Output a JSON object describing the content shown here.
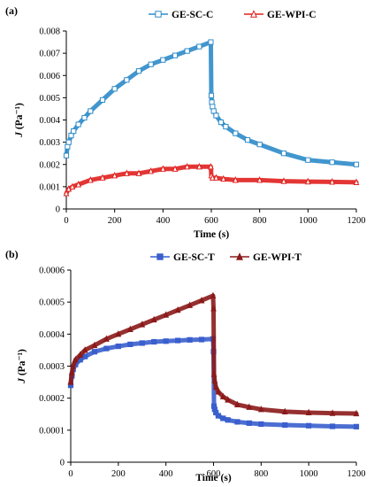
{
  "chart_data": [
    {
      "type": "line",
      "panel_label": "(a)",
      "xlabel": "Time (s)",
      "ylabel_italic": "J",
      "ylabel_rest": " (Pa⁻¹)",
      "xlim": [
        0,
        1200
      ],
      "ylim": [
        0,
        0.008
      ],
      "xticks": [
        "0",
        "200",
        "400",
        "600",
        "800",
        "1000",
        "1200"
      ],
      "yticks": [
        "0",
        "0.001",
        "0.002",
        "0.003",
        "0.004",
        "0.005",
        "0.006",
        "0.007",
        "0.008"
      ],
      "legend_position": "top",
      "series": [
        {
          "name": "GE-SC-C",
          "color": "#2e8bc9",
          "marker": "square-open",
          "x": [
            0,
            5,
            10,
            20,
            30,
            50,
            75,
            100,
            150,
            200,
            250,
            300,
            350,
            400,
            450,
            500,
            550,
            598,
            600,
            602,
            605,
            610,
            620,
            640,
            660,
            700,
            750,
            800,
            900,
            1000,
            1100,
            1200
          ],
          "y": [
            0.0024,
            0.0028,
            0.003,
            0.0033,
            0.0035,
            0.0038,
            0.0041,
            0.0044,
            0.0049,
            0.0054,
            0.0058,
            0.0062,
            0.0065,
            0.0067,
            0.0069,
            0.0071,
            0.0073,
            0.0075,
            0.0051,
            0.0048,
            0.0046,
            0.0044,
            0.0042,
            0.0039,
            0.0037,
            0.0034,
            0.0031,
            0.0029,
            0.0025,
            0.0022,
            0.0021,
            0.002
          ]
        },
        {
          "name": "GE-WPI-C",
          "color": "#e0201e",
          "marker": "triangle-open",
          "x": [
            0,
            10,
            25,
            50,
            100,
            150,
            200,
            250,
            300,
            350,
            400,
            450,
            500,
            550,
            598,
            600,
            605,
            620,
            650,
            700,
            800,
            900,
            1000,
            1100,
            1200
          ],
          "y": [
            0.0007,
            0.0009,
            0.001,
            0.0011,
            0.0013,
            0.0014,
            0.0015,
            0.0016,
            0.0016,
            0.0017,
            0.0018,
            0.0018,
            0.0019,
            0.0019,
            0.0019,
            0.0015,
            0.0014,
            0.0014,
            0.00135,
            0.0013,
            0.0013,
            0.00125,
            0.00123,
            0.00122,
            0.0012
          ]
        }
      ]
    },
    {
      "type": "line",
      "panel_label": "(b)",
      "xlabel": "Time (s)",
      "ylabel_italic": "J",
      "ylabel_rest": " (Pa⁻¹)",
      "xlim": [
        0,
        1200
      ],
      "ylim": [
        0,
        0.0006
      ],
      "xticks": [
        "0",
        "200",
        "400",
        "600",
        "800",
        "1000",
        "1200"
      ],
      "yticks": [
        "0",
        "0.0001",
        "0.0002",
        "0.0003",
        "0.0004",
        "0.0005",
        "0.0006"
      ],
      "legend_position": "top",
      "series": [
        {
          "name": "GE-SC-T",
          "color": "#3a5fcd",
          "marker": "square-filled",
          "x": [
            0,
            5,
            10,
            20,
            40,
            60,
            100,
            150,
            200,
            250,
            300,
            350,
            400,
            450,
            500,
            550,
            598,
            600,
            602,
            605,
            610,
            620,
            640,
            660,
            700,
            750,
            800,
            900,
            1000,
            1100,
            1200
          ],
          "y": [
            0.00024,
            0.00027,
            0.00029,
            0.000305,
            0.00032,
            0.00033,
            0.000345,
            0.000355,
            0.000362,
            0.000368,
            0.000372,
            0.000376,
            0.000378,
            0.00038,
            0.000382,
            0.000383,
            0.000385,
            0.000345,
            0.000175,
            0.000165,
            0.000155,
            0.000145,
            0.000137,
            0.000132,
            0.000126,
            0.000122,
            0.000119,
            0.000116,
            0.000114,
            0.000112,
            0.000111
          ]
        },
        {
          "name": "GE-WPI-T",
          "color": "#8b1a1a",
          "marker": "triangle-filled",
          "x": [
            0,
            5,
            10,
            20,
            40,
            60,
            100,
            150,
            200,
            250,
            300,
            350,
            400,
            450,
            500,
            550,
            598,
            600,
            602,
            605,
            610,
            620,
            640,
            660,
            700,
            750,
            800,
            900,
            1000,
            1100,
            1200
          ],
          "y": [
            0.00025,
            0.00028,
            0.0003,
            0.00032,
            0.000335,
            0.00035,
            0.000365,
            0.000385,
            0.0004,
            0.000415,
            0.00043,
            0.000445,
            0.00046,
            0.000475,
            0.00049,
            0.000505,
            0.00052,
            0.00048,
            0.000275,
            0.000255,
            0.000235,
            0.00022,
            0.000205,
            0.000195,
            0.00018,
            0.000172,
            0.000165,
            0.000158,
            0.000155,
            0.000153,
            0.000152
          ]
        }
      ]
    }
  ]
}
